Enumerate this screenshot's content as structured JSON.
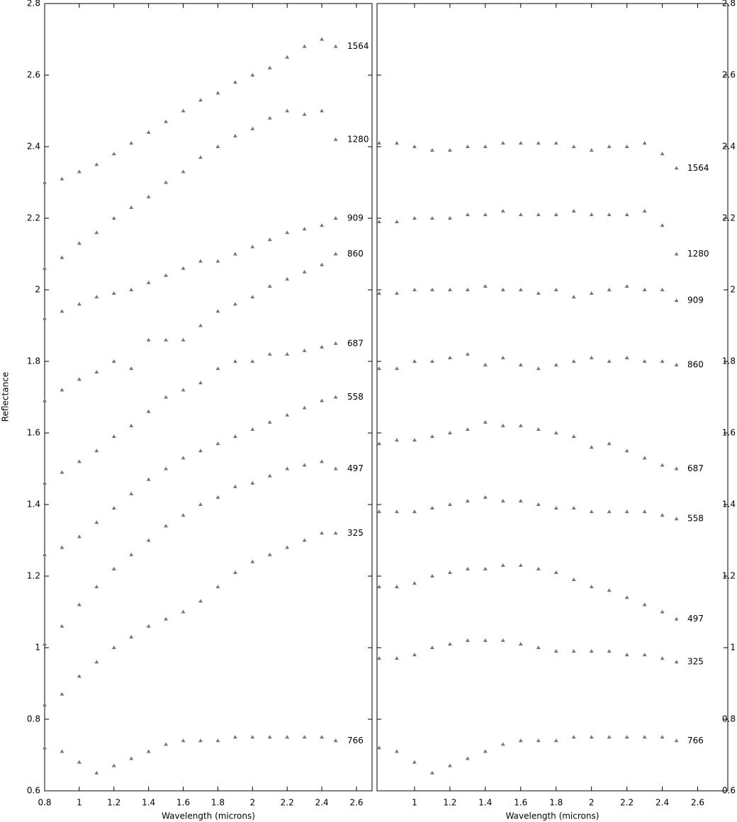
{
  "chart_data": [
    {
      "type": "scatter",
      "x_label": "Wavelength (microns)",
      "y_label": "Reflectance",
      "x": [
        0.8,
        0.9,
        1.0,
        1.1,
        1.2,
        1.3,
        1.4,
        1.5,
        1.6,
        1.7,
        1.8,
        1.9,
        2.0,
        2.1,
        2.2,
        2.3,
        2.4,
        2.48
      ],
      "xlim": [
        0.8,
        2.69
      ],
      "ylim": [
        0.6,
        2.8
      ],
      "xticks": [
        0.8,
        1,
        1.2,
        1.4,
        1.6,
        1.8,
        2,
        2.2,
        2.4,
        2.6
      ],
      "yticks": [
        0.6,
        0.8,
        1,
        1.2,
        1.4,
        1.6,
        1.8,
        2,
        2.2,
        2.4,
        2.6,
        2.8
      ],
      "series": [
        {
          "name": "1564",
          "color": "#777777",
          "values": [
            2.3,
            2.31,
            2.33,
            2.35,
            2.38,
            2.41,
            2.44,
            2.47,
            2.5,
            2.53,
            2.55,
            2.58,
            2.6,
            2.62,
            2.65,
            2.68,
            2.7,
            2.68
          ]
        },
        {
          "name": "1280",
          "color": "#777777",
          "values": [
            2.06,
            2.09,
            2.13,
            2.16,
            2.2,
            2.23,
            2.26,
            2.3,
            2.33,
            2.37,
            2.4,
            2.43,
            2.45,
            2.48,
            2.5,
            2.49,
            2.5,
            2.42
          ]
        },
        {
          "name": "909",
          "color": "#777777",
          "values": [
            1.92,
            1.94,
            1.96,
            1.98,
            1.99,
            2.0,
            2.02,
            2.04,
            2.06,
            2.08,
            2.08,
            2.1,
            2.12,
            2.14,
            2.16,
            2.17,
            2.18,
            2.2
          ]
        },
        {
          "name": "860",
          "color": "#777777",
          "values": [
            1.69,
            1.72,
            1.75,
            1.77,
            1.8,
            1.78,
            1.86,
            1.86,
            1.86,
            1.9,
            1.94,
            1.96,
            1.98,
            2.01,
            2.03,
            2.05,
            2.07,
            2.1
          ]
        },
        {
          "name": "687",
          "color": "#777777",
          "values": [
            1.46,
            1.49,
            1.52,
            1.55,
            1.59,
            1.62,
            1.66,
            1.7,
            1.72,
            1.74,
            1.78,
            1.8,
            1.8,
            1.82,
            1.82,
            1.83,
            1.84,
            1.85
          ]
        },
        {
          "name": "558",
          "color": "#777777",
          "values": [
            1.26,
            1.28,
            1.31,
            1.35,
            1.39,
            1.43,
            1.47,
            1.5,
            1.53,
            1.55,
            1.57,
            1.59,
            1.61,
            1.63,
            1.65,
            1.67,
            1.69,
            1.7
          ]
        },
        {
          "name": "497",
          "color": "#777777",
          "values": [
            1.01,
            1.06,
            1.12,
            1.17,
            1.22,
            1.26,
            1.3,
            1.34,
            1.37,
            1.4,
            1.42,
            1.45,
            1.46,
            1.48,
            1.5,
            1.51,
            1.52,
            1.5
          ]
        },
        {
          "name": "325",
          "color": "#777777",
          "values": [
            0.84,
            0.87,
            0.92,
            0.96,
            1.0,
            1.03,
            1.06,
            1.08,
            1.1,
            1.13,
            1.17,
            1.21,
            1.24,
            1.26,
            1.28,
            1.3,
            1.32,
            1.32
          ]
        },
        {
          "name": "766",
          "color": "#777777",
          "values": [
            0.72,
            0.71,
            0.68,
            0.65,
            0.67,
            0.69,
            0.71,
            0.73,
            0.74,
            0.74,
            0.74,
            0.75,
            0.75,
            0.75,
            0.75,
            0.75,
            0.75,
            0.74
          ]
        }
      ]
    },
    {
      "type": "scatter",
      "x_label": "Wavelength (microns)",
      "x": [
        0.8,
        0.9,
        1.0,
        1.1,
        1.2,
        1.3,
        1.4,
        1.5,
        1.6,
        1.7,
        1.8,
        1.9,
        2.0,
        2.1,
        2.2,
        2.3,
        2.4,
        2.48
      ],
      "xlim": [
        0.788,
        2.77
      ],
      "ylim": [
        0.6,
        2.8
      ],
      "xticks": [
        1,
        1.2,
        1.4,
        1.6,
        1.8,
        2,
        2.2,
        2.4,
        2.6
      ],
      "yticks": [
        0.6,
        0.8,
        1,
        1.2,
        1.4,
        1.6,
        1.8,
        2,
        2.2,
        2.4,
        2.6,
        2.8
      ],
      "series": [
        {
          "name": "1564",
          "color": "#777777",
          "values": [
            2.41,
            2.41,
            2.4,
            2.39,
            2.39,
            2.4,
            2.4,
            2.41,
            2.41,
            2.41,
            2.41,
            2.4,
            2.39,
            2.4,
            2.4,
            2.41,
            2.38,
            2.34
          ]
        },
        {
          "name": "1280",
          "color": "#777777",
          "values": [
            2.19,
            2.19,
            2.2,
            2.2,
            2.2,
            2.21,
            2.21,
            2.22,
            2.21,
            2.21,
            2.21,
            2.22,
            2.21,
            2.21,
            2.21,
            2.22,
            2.18,
            2.1
          ]
        },
        {
          "name": "909",
          "color": "#777777",
          "values": [
            1.99,
            1.99,
            2.0,
            2.0,
            2.0,
            2.0,
            2.01,
            2.0,
            2.0,
            1.99,
            2.0,
            1.98,
            1.99,
            2.0,
            2.01,
            2.0,
            2.0,
            1.97
          ]
        },
        {
          "name": "860",
          "color": "#777777",
          "values": [
            1.78,
            1.78,
            1.8,
            1.8,
            1.81,
            1.82,
            1.79,
            1.81,
            1.79,
            1.78,
            1.79,
            1.8,
            1.81,
            1.8,
            1.81,
            1.8,
            1.8,
            1.79
          ]
        },
        {
          "name": "687",
          "color": "#777777",
          "values": [
            1.57,
            1.58,
            1.58,
            1.59,
            1.6,
            1.61,
            1.63,
            1.62,
            1.62,
            1.61,
            1.6,
            1.59,
            1.56,
            1.57,
            1.55,
            1.53,
            1.51,
            1.5
          ]
        },
        {
          "name": "558",
          "color": "#777777",
          "values": [
            1.38,
            1.38,
            1.38,
            1.39,
            1.4,
            1.41,
            1.42,
            1.41,
            1.41,
            1.4,
            1.39,
            1.39,
            1.38,
            1.38,
            1.38,
            1.38,
            1.37,
            1.36
          ]
        },
        {
          "name": "497",
          "color": "#777777",
          "values": [
            1.17,
            1.17,
            1.18,
            1.2,
            1.21,
            1.22,
            1.22,
            1.23,
            1.23,
            1.22,
            1.21,
            1.19,
            1.17,
            1.16,
            1.14,
            1.12,
            1.1,
            1.08
          ]
        },
        {
          "name": "325",
          "color": "#777777",
          "values": [
            0.97,
            0.97,
            0.98,
            1.0,
            1.01,
            1.02,
            1.02,
            1.02,
            1.01,
            1.0,
            0.99,
            0.99,
            0.99,
            0.99,
            0.98,
            0.98,
            0.97,
            0.96
          ]
        },
        {
          "name": "766",
          "color": "#777777",
          "values": [
            0.72,
            0.71,
            0.68,
            0.65,
            0.67,
            0.69,
            0.71,
            0.73,
            0.74,
            0.74,
            0.74,
            0.75,
            0.75,
            0.75,
            0.75,
            0.75,
            0.75,
            0.74
          ]
        }
      ]
    }
  ]
}
